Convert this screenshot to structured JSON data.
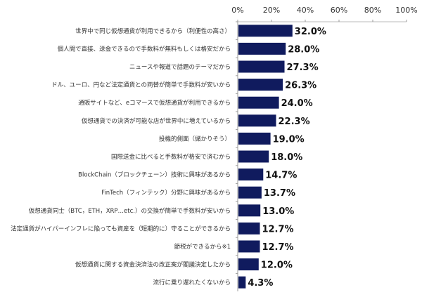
{
  "chart_data": {
    "type": "bar",
    "orientation": "horizontal",
    "title": "",
    "xlabel": "",
    "ylabel": "",
    "xlim": [
      0,
      100
    ],
    "ticks": [
      "0%",
      "20%",
      "40%",
      "60%",
      "80%",
      "100%"
    ],
    "tick_values": [
      0,
      20,
      40,
      60,
      80,
      100
    ],
    "grid": false,
    "bar_color": "#101b5e",
    "categories": [
      "世界中で同じ仮想通貨が利用できるから（利便性の高さ）",
      "個人間で直接、送金できるので手数料が無料もしくは格安だから",
      "ニュースや報道で話題のテーマだから",
      "ドル、ユーロ、円など法定通貨との両替が簡単で手数料が安いから",
      "通販サイトなど、eコマースで仮想通貨が利用できるから",
      "仮想通貨での決済が可能な店が世界中に増えているから",
      "投機的側面（儲かりそう）",
      "国際送金に比べると手数料が格安で済むから",
      "BlockChain（ブロックチェーン）技術に興味があるから",
      "FinTech（フィンテック）分野に興味があるから",
      "仮想通貨同士（BTC，ETH，XRP…etc.）の交換が簡単で手数料が安いから",
      "法定通貨がハイパーインフレに陥っても資産を（短期的に）守ることができるから",
      "節税ができるから※1",
      "仮想通貨に関する資金決済法の改正案が閣議決定したから",
      "流行に乗り遅れたくないから"
    ],
    "values": [
      32.0,
      28.0,
      27.3,
      26.3,
      24.0,
      22.3,
      19.0,
      18.0,
      14.7,
      13.7,
      13.0,
      12.7,
      12.7,
      12.0,
      4.3
    ],
    "value_labels": [
      "32.0%",
      "28.0%",
      "27.3%",
      "26.3%",
      "24.0%",
      "22.3%",
      "19.0%",
      "18.0%",
      "14.7%",
      "13.7%",
      "13.0%",
      "12.7%",
      "12.7%",
      "12.0%",
      "4.3%"
    ]
  }
}
